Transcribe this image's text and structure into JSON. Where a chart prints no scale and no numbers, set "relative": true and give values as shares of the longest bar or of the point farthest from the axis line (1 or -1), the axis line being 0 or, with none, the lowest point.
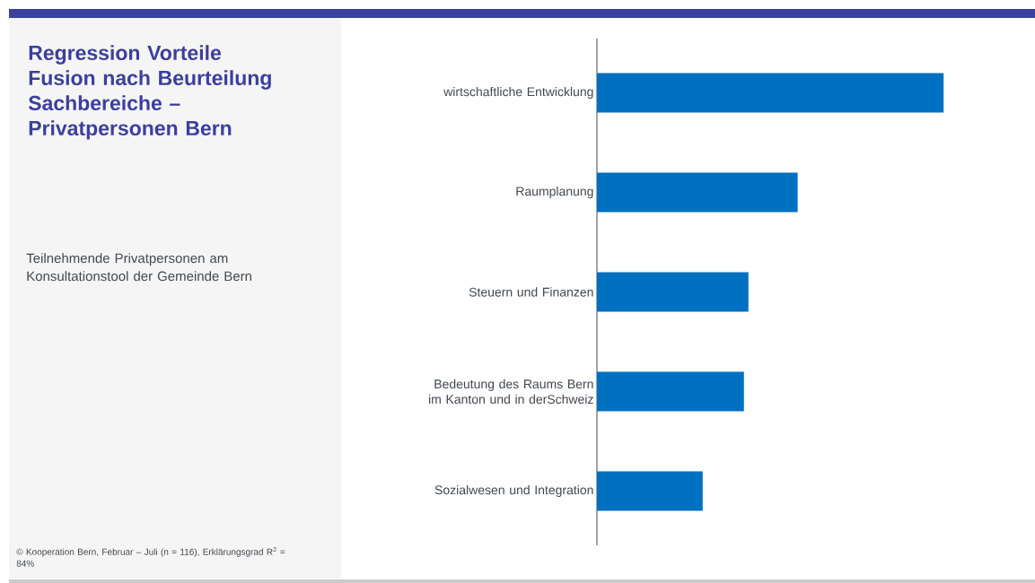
{
  "chart_data": {
    "type": "bar",
    "orientation": "horizontal",
    "relative": true,
    "title": "Regression Vorteile Fusion nach Beurteilung Sachbereiche – Privatpersonen Bern",
    "subtitle": "Teilnehmende Privatpersonen am Konsultationstool der Gemeinde Bern",
    "annotations": [
      "© Kooperation Bern, Februar – Juli (n = 116), Erklärungsgrad R$^{2}$ = 84%"
    ],
    "categories": [
      "wirtschaftliche Entwicklung",
      "Raumplanung",
      "Steuern und Finanzen",
      "Bedeutung des Raums Bern im Kanton und in derSchweiz",
      "Sozialwesen und Integration"
    ],
    "values": [
      1,
      0.579,
      0.437,
      0.424,
      0.305
    ],
    "color": "#0070c0"
  }
}
